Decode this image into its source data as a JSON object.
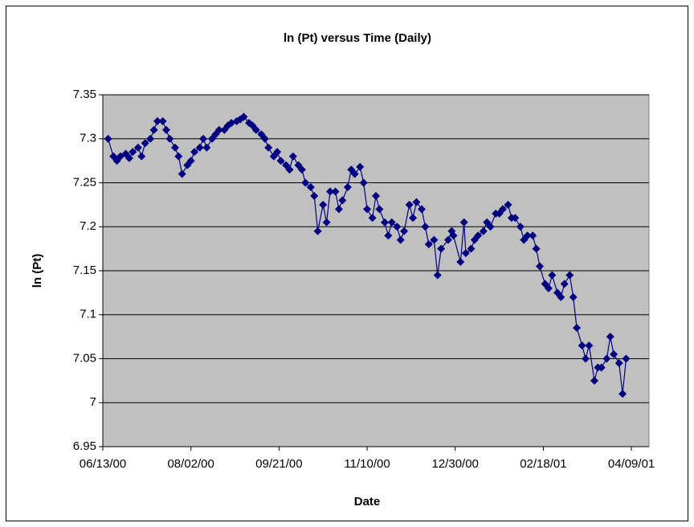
{
  "chart_data": {
    "type": "line",
    "title": "ln (Pt) versus Time (Daily)",
    "xlabel": "Date",
    "ylabel": "ln (Pt)",
    "x": [
      "06/16/00",
      "06/19/00",
      "06/21/00",
      "06/23/00",
      "06/26/00",
      "06/28/00",
      "06/30/00",
      "07/03/00",
      "07/05/00",
      "07/07/00",
      "07/10/00",
      "07/12/00",
      "07/14/00",
      "07/17/00",
      "07/19/00",
      "07/21/00",
      "07/24/00",
      "07/26/00",
      "07/28/00",
      "07/31/00",
      "08/02/00",
      "08/04/00",
      "08/07/00",
      "08/09/00",
      "08/11/00",
      "08/14/00",
      "08/16/00",
      "08/18/00",
      "08/21/00",
      "08/23/00",
      "08/25/00",
      "08/28/00",
      "08/30/00",
      "09/01/00",
      "09/04/00",
      "09/06/00",
      "09/08/00",
      "09/11/00",
      "09/13/00",
      "09/15/00",
      "09/18/00",
      "09/20/00",
      "09/22/00",
      "09/25/00",
      "09/27/00",
      "09/29/00",
      "10/02/00",
      "10/04/00",
      "10/06/00",
      "10/09/00",
      "10/11/00",
      "10/13/00",
      "10/16/00",
      "10/18/00",
      "10/20/00",
      "10/23/00",
      "10/25/00",
      "10/27/00",
      "10/30/00",
      "11/01/00",
      "11/03/00",
      "11/06/00",
      "11/08/00",
      "11/10/00",
      "11/13/00",
      "11/15/00",
      "11/17/00",
      "11/20/00",
      "11/22/00",
      "11/24/00",
      "11/27/00",
      "11/29/00",
      "12/01/00",
      "12/04/00",
      "12/06/00",
      "12/08/00",
      "12/11/00",
      "12/13/00",
      "12/15/00",
      "12/18/00",
      "12/20/00",
      "12/22/00",
      "12/26/00",
      "12/28/00",
      "12/29/00",
      "01/02/01",
      "01/04/01",
      "01/05/01",
      "01/08/01",
      "01/10/01",
      "01/12/01",
      "01/15/01",
      "01/17/01",
      "01/19/01",
      "01/22/01",
      "01/24/01",
      "01/26/01",
      "01/29/01",
      "01/31/01",
      "02/02/01",
      "02/05/01",
      "02/07/01",
      "02/09/01",
      "02/12/01",
      "02/14/01",
      "02/16/01",
      "02/19/01",
      "02/21/01",
      "02/23/01",
      "02/26/01",
      "02/28/01",
      "03/02/01",
      "03/05/01",
      "03/07/01",
      "03/09/01",
      "03/12/01",
      "03/14/01",
      "03/16/01",
      "03/19/01",
      "03/21/01",
      "03/23/01",
      "03/26/01",
      "03/28/01",
      "03/30/01",
      "04/02/01",
      "04/04/01",
      "04/06/01"
    ],
    "series": [
      {
        "color": "#000080",
        "values": [
          7.3,
          7.28,
          7.275,
          7.28,
          7.283,
          7.278,
          7.285,
          7.29,
          7.28,
          7.295,
          7.3,
          7.31,
          7.32,
          7.32,
          7.31,
          7.3,
          7.29,
          7.28,
          7.26,
          7.27,
          7.275,
          7.285,
          7.29,
          7.3,
          7.29,
          7.3,
          7.305,
          7.31,
          7.31,
          7.315,
          7.318,
          7.32,
          7.322,
          7.325,
          7.318,
          7.315,
          7.31,
          7.305,
          7.3,
          7.29,
          7.28,
          7.285,
          7.275,
          7.27,
          7.265,
          7.28,
          7.27,
          7.265,
          7.25,
          7.245,
          7.235,
          7.195,
          7.225,
          7.205,
          7.24,
          7.24,
          7.22,
          7.23,
          7.245,
          7.265,
          7.26,
          7.268,
          7.25,
          7.22,
          7.21,
          7.235,
          7.22,
          7.205,
          7.19,
          7.205,
          7.2,
          7.185,
          7.195,
          7.225,
          7.21,
          7.228,
          7.22,
          7.2,
          7.18,
          7.185,
          7.145,
          7.175,
          7.185,
          7.195,
          7.19,
          7.16,
          7.205,
          7.17,
          7.175,
          7.185,
          7.19,
          7.195,
          7.205,
          7.2,
          7.215,
          7.215,
          7.22,
          7.225,
          7.21,
          7.21,
          7.2,
          7.185,
          7.19,
          7.19,
          7.175,
          7.155,
          7.135,
          7.13,
          7.145,
          7.125,
          7.12,
          7.135,
          7.145,
          7.12,
          7.085,
          7.065,
          7.05,
          7.065,
          7.025,
          7.04,
          7.04,
          7.05,
          7.075,
          7.055,
          7.045,
          7.01,
          7.05
        ]
      }
    ],
    "xlim": [
      "06/13/00",
      "04/19/01"
    ],
    "xticks": [
      "06/13/00",
      "08/02/00",
      "09/21/00",
      "11/10/00",
      "12/30/00",
      "02/18/01",
      "04/09/01"
    ],
    "ylim": [
      6.95,
      7.35
    ],
    "yticks": [
      6.95,
      {
        "value": 7,
        "label": "7"
      },
      7.05,
      {
        "value": 7.1,
        "label": "7.1"
      },
      7.15,
      {
        "value": 7.2,
        "label": "7.2"
      },
      7.25,
      {
        "value": 7.3,
        "label": "7.3"
      },
      7.35
    ],
    "grid": true,
    "plot_background": "#c0c0c0"
  }
}
